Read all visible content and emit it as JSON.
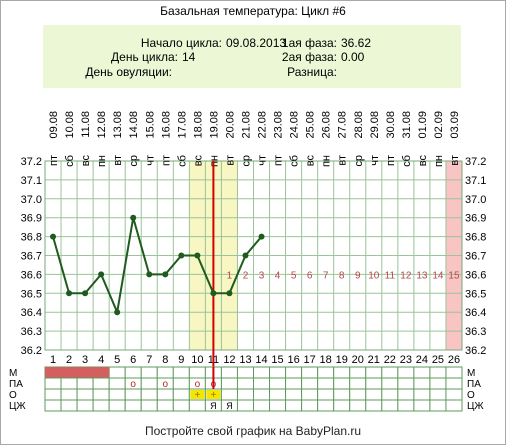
{
  "title": "Базальная температура: Цикл #6",
  "info": {
    "cycle_start_label": "Начало цикла:",
    "cycle_start_value": "09.08.2013",
    "cycle_day_label": "День цикла:",
    "cycle_day_value": "14",
    "ovulation_day_label": "День овуляции:",
    "ovulation_day_value": "",
    "phase1_label": "1ая фаза:",
    "phase1_value": "36.62",
    "phase2_label": "2ая фаза:",
    "phase2_value": "0.00",
    "difference_label": "Разница:",
    "difference_value": ""
  },
  "footer": "Постройте свой график на BabyPlan.ru",
  "colors": {
    "line": "#1f5a1f",
    "ovulation_line": "#d40000",
    "highlight": "#f8f6c2",
    "last_day": "#f8c4c4",
    "phase_numbers": "#b5484a",
    "menstruation": "#d35f5f",
    "info_bg": "#ecf7d6"
  },
  "chart_data": {
    "type": "line",
    "ylim": [
      36.2,
      37.2
    ],
    "yticks": [
      "37.2",
      "37.1",
      "37.0",
      "36.9",
      "36.8",
      "36.7",
      "36.6",
      "36.5",
      "36.4",
      "36.3",
      "36.2"
    ],
    "days": [
      1,
      2,
      3,
      4,
      5,
      6,
      7,
      8,
      9,
      10,
      11,
      12,
      13,
      14,
      15,
      16,
      17,
      18,
      19,
      20,
      21,
      22,
      23,
      24,
      25,
      26
    ],
    "dates": [
      "09.08",
      "10.08",
      "11.08",
      "12.08",
      "13.08",
      "14.08",
      "15.08",
      "16.08",
      "17.08",
      "18.08",
      "19.08",
      "20.08",
      "21.08",
      "22.08",
      "23.08",
      "24.08",
      "25.08",
      "26.08",
      "27.08",
      "28.08",
      "29.08",
      "30.08",
      "31.08",
      "01.09",
      "02.09",
      "03.09"
    ],
    "weekdays": [
      "пт",
      "сб",
      "вс",
      "пн",
      "вт",
      "ср",
      "чт",
      "пт",
      "сб",
      "вс",
      "пн",
      "вт",
      "ср",
      "чт",
      "пт",
      "сб",
      "вс",
      "пн",
      "вт",
      "ср",
      "чт",
      "пт",
      "сб",
      "вс",
      "пн",
      "вт"
    ],
    "temperatures": [
      36.8,
      36.5,
      36.5,
      36.6,
      36.4,
      36.9,
      36.6,
      36.6,
      36.7,
      36.7,
      36.5,
      36.5,
      36.7,
      36.8
    ],
    "highlight_days": [
      10,
      12
    ],
    "ovulation_line_day": 11,
    "last_day_highlight": 26,
    "phase_numbers": {
      "start_day": 12,
      "labels": [
        "1",
        "2",
        "3",
        "4",
        "5",
        "6",
        "7",
        "8",
        "9",
        "10",
        "11",
        "12",
        "13",
        "14",
        "15"
      ],
      "value": 36.6
    },
    "rows": [
      {
        "label": "М",
        "days": [
          1,
          2,
          3,
          4
        ],
        "mark": "fill"
      },
      {
        "label": "ПА",
        "days": [
          6,
          8,
          10,
          11
        ],
        "mark": "о"
      },
      {
        "label": "О",
        "days": [
          10,
          11
        ],
        "mark": "+"
      },
      {
        "label": "ЦЖ",
        "days": [
          11,
          12
        ],
        "mark": "Я"
      }
    ]
  }
}
